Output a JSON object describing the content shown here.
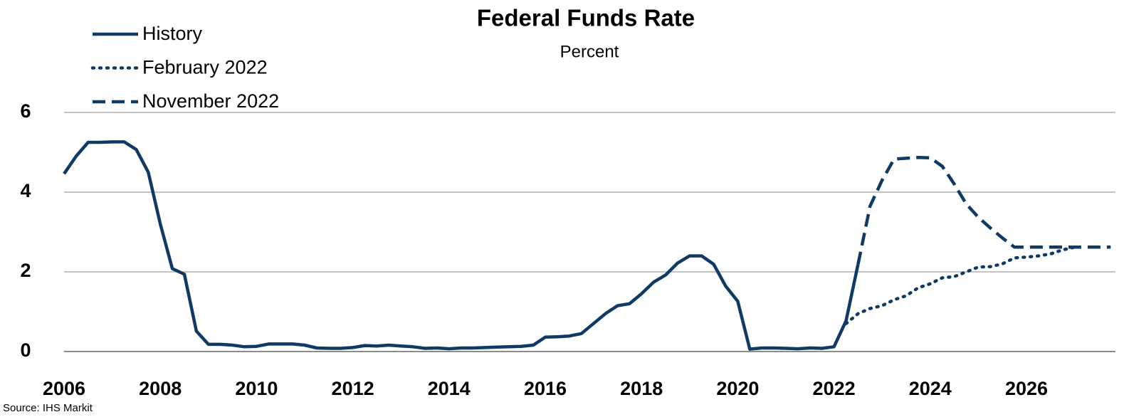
{
  "chart_data": {
    "type": "line",
    "title": "Federal Funds Rate",
    "subtitle": "Percent",
    "source": "Source: IHS Markit",
    "xlim": [
      2006,
      2027.85
    ],
    "xticks": [
      2006,
      2008,
      2010,
      2012,
      2014,
      2016,
      2018,
      2020,
      2022,
      2024,
      2026
    ],
    "ylim": [
      0,
      6
    ],
    "yticks": [
      0,
      2,
      4,
      6
    ],
    "grid": true,
    "legend": "top-left",
    "series": [
      {
        "name": "History",
        "color": "#0e3a64",
        "dash": "solid",
        "x": [
          2006,
          2006.25,
          2006.5,
          2006.75,
          2007,
          2007.25,
          2007.5,
          2007.75,
          2008,
          2008.25,
          2008.5,
          2008.75,
          2009,
          2009.25,
          2009.5,
          2009.75,
          2010,
          2010.25,
          2010.5,
          2010.75,
          2011,
          2011.25,
          2011.5,
          2011.75,
          2012,
          2012.25,
          2012.5,
          2012.75,
          2013,
          2013.25,
          2013.5,
          2013.75,
          2014,
          2014.25,
          2014.5,
          2014.75,
          2015,
          2015.25,
          2015.5,
          2015.75,
          2016,
          2016.25,
          2016.5,
          2016.75,
          2017,
          2017.25,
          2017.5,
          2017.75,
          2018,
          2018.25,
          2018.5,
          2018.75,
          2019,
          2019.25,
          2019.5,
          2019.75,
          2020,
          2020.25,
          2020.5,
          2020.75,
          2021,
          2021.25,
          2021.5,
          2021.75,
          2022,
          2022.25,
          2022.5
        ],
        "values": [
          4.46,
          4.9,
          5.25,
          5.25,
          5.26,
          5.26,
          5.07,
          4.5,
          3.2,
          2.08,
          1.94,
          0.51,
          0.18,
          0.18,
          0.16,
          0.12,
          0.13,
          0.19,
          0.19,
          0.19,
          0.16,
          0.09,
          0.08,
          0.08,
          0.1,
          0.15,
          0.14,
          0.16,
          0.14,
          0.12,
          0.08,
          0.09,
          0.07,
          0.09,
          0.09,
          0.1,
          0.11,
          0.12,
          0.13,
          0.16,
          0.36,
          0.37,
          0.39,
          0.45,
          0.7,
          0.95,
          1.15,
          1.2,
          1.45,
          1.74,
          1.92,
          2.22,
          2.4,
          2.4,
          2.19,
          1.64,
          1.26,
          0.06,
          0.09,
          0.09,
          0.08,
          0.07,
          0.09,
          0.08,
          0.12,
          0.77,
          2.19
        ]
      },
      {
        "name": "February 2022",
        "color": "#0e3a64",
        "dash": "dotted",
        "x": [
          2022.25,
          2022.5,
          2022.75,
          2023,
          2023.25,
          2023.5,
          2023.75,
          2024,
          2024.25,
          2024.5,
          2024.75,
          2025,
          2025.25,
          2025.5,
          2025.75,
          2026,
          2026.25,
          2026.5,
          2026.75,
          2027
        ],
        "values": [
          0.7,
          0.95,
          1.08,
          1.15,
          1.3,
          1.4,
          1.6,
          1.7,
          1.85,
          1.88,
          2.0,
          2.12,
          2.13,
          2.2,
          2.35,
          2.37,
          2.4,
          2.45,
          2.55,
          2.62
        ]
      },
      {
        "name": "November 2022",
        "color": "#0e3a64",
        "dash": "dashed",
        "x": [
          2022.5,
          2022.75,
          2023,
          2023.25,
          2023.5,
          2023.75,
          2024,
          2024.25,
          2024.5,
          2024.75,
          2025,
          2025.25,
          2025.5,
          2025.75,
          2026,
          2026.25,
          2026.5,
          2026.75,
          2027,
          2027.25,
          2027.5,
          2027.75
        ],
        "values": [
          2.19,
          3.65,
          4.3,
          4.83,
          4.85,
          4.87,
          4.86,
          4.65,
          4.2,
          3.7,
          3.37,
          3.1,
          2.85,
          2.62,
          2.62,
          2.62,
          2.62,
          2.62,
          2.62,
          2.62,
          2.62,
          2.62
        ]
      }
    ]
  }
}
